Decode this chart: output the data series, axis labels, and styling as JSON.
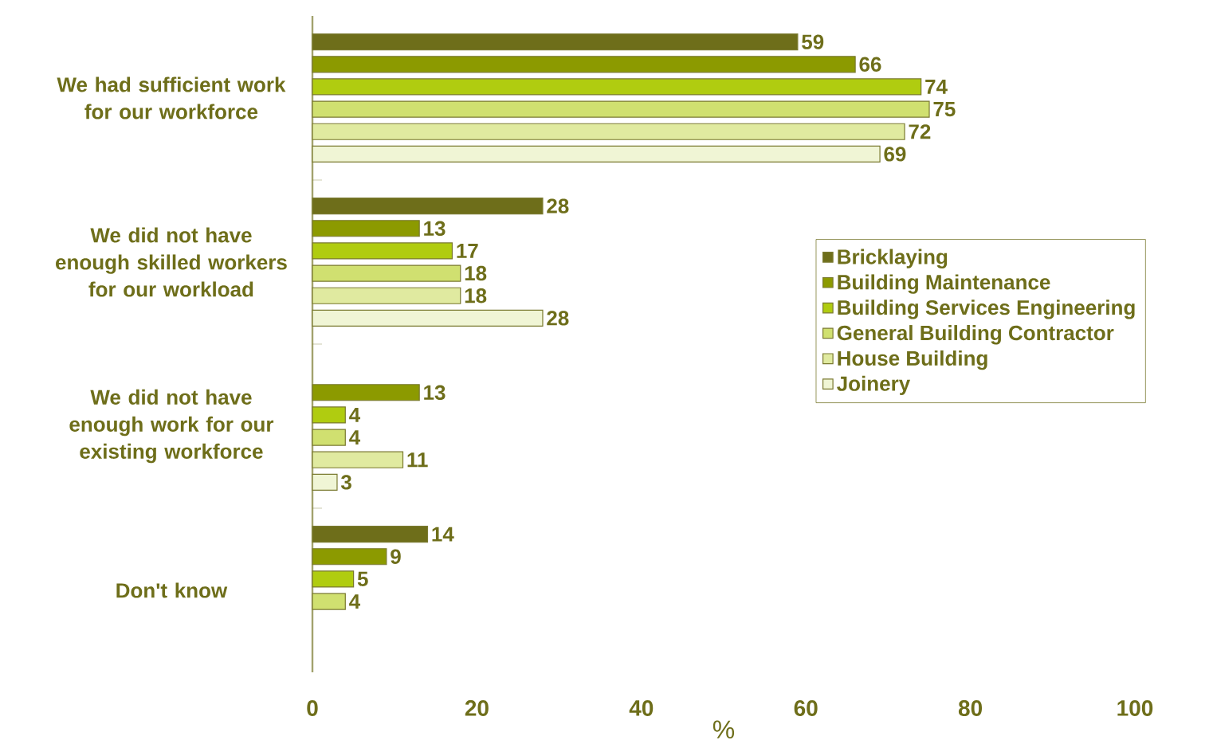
{
  "chart_data": {
    "type": "bar",
    "orientation": "horizontal",
    "xlabel": "%",
    "categories": [
      "We had sufficient work for our workforce",
      "We did not have enough skilled workers for our workload",
      "We did not have enough work for our existing workforce",
      "Don't know"
    ],
    "series": [
      {
        "name": "Bricklaying",
        "color": "#6e6e1a",
        "values": [
          59,
          28,
          null,
          14
        ]
      },
      {
        "name": "Building Maintenance",
        "color": "#8c9a00",
        "values": [
          66,
          13,
          13,
          9
        ]
      },
      {
        "name": "Building Services Engineering",
        "color": "#b0cc10",
        "values": [
          74,
          17,
          4,
          5
        ]
      },
      {
        "name": "General Building Contractor",
        "color": "#d0e070",
        "values": [
          75,
          18,
          4,
          4
        ]
      },
      {
        "name": "House Building",
        "color": "#e0eaa0",
        "values": [
          72,
          18,
          11,
          null
        ]
      },
      {
        "name": "Joinery",
        "color": "#f0f5d5",
        "values": [
          69,
          28,
          3,
          null
        ]
      }
    ],
    "xlim": [
      0,
      100
    ],
    "xticks": [
      0,
      20,
      40,
      60,
      80,
      100
    ],
    "data_labels": true,
    "legend": "right",
    "grid": false
  }
}
